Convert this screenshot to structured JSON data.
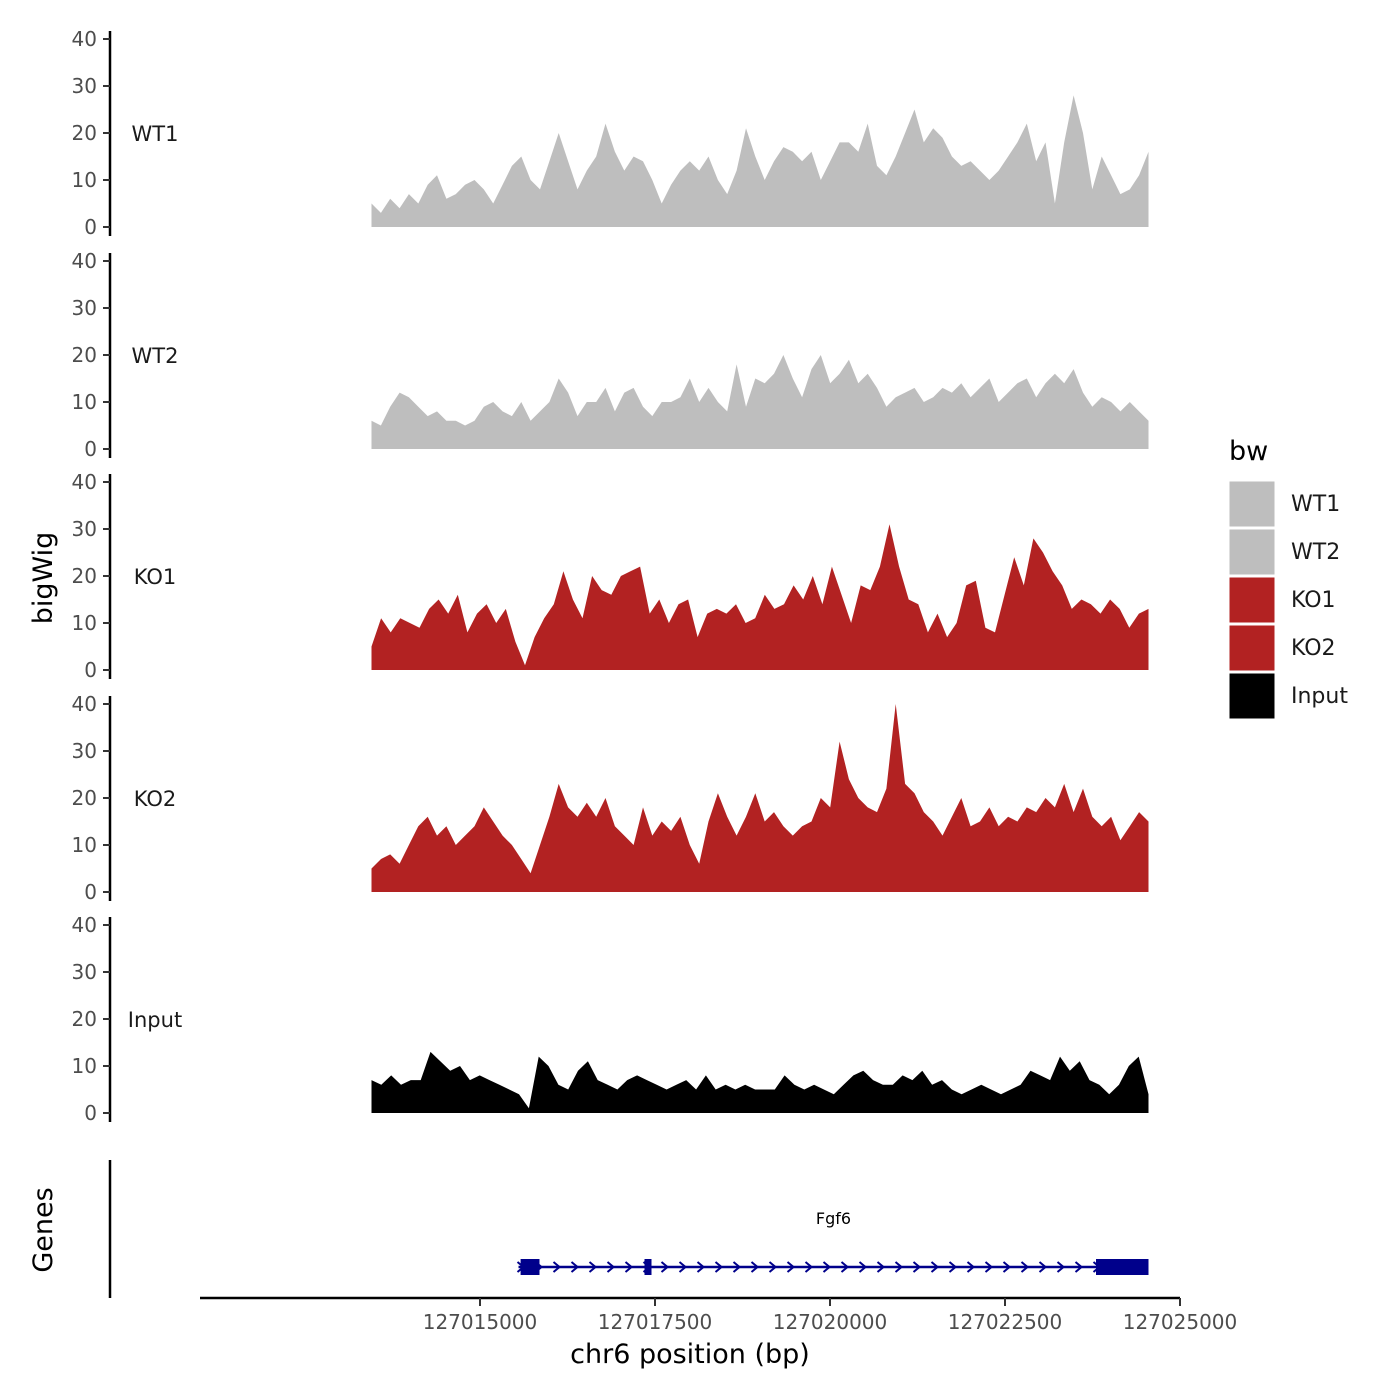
{
  "chart_data": {
    "type": "area",
    "title": "",
    "xlabel": "chr6 position (bp)",
    "ylabel": "bigWig",
    "gene_track_label": "Genes",
    "xlim": [
      127011000,
      127025000
    ],
    "x_ticks": [
      127015000,
      127017500,
      127020000,
      127022500,
      127025000
    ],
    "x_tick_labels": [
      "127015000",
      "127017500",
      "127020000",
      "127022500",
      "127025000"
    ],
    "ylim": [
      0,
      40
    ],
    "y_ticks": [
      0,
      10,
      20,
      30,
      40
    ],
    "y_tick_labels": [
      "0",
      "10",
      "20",
      "30",
      "40"
    ],
    "x_start": 127013450,
    "x_end": 127024550,
    "legend": {
      "title": "bw",
      "entries": [
        {
          "label": "WT1",
          "color": "#bebebe"
        },
        {
          "label": "WT2",
          "color": "#bebebe"
        },
        {
          "label": "KO1",
          "color": "#b22222"
        },
        {
          "label": "KO2",
          "color": "#b22222"
        },
        {
          "label": "Input",
          "color": "#000000"
        }
      ]
    },
    "series": [
      {
        "name": "WT1",
        "color": "#bebebe",
        "values": [
          5,
          3,
          6,
          4,
          7,
          5,
          9,
          11,
          6,
          7,
          9,
          10,
          8,
          5,
          9,
          13,
          15,
          10,
          8,
          14,
          20,
          14,
          8,
          12,
          15,
          22,
          16,
          12,
          15,
          14,
          10,
          5,
          9,
          12,
          14,
          12,
          15,
          10,
          7,
          12,
          21,
          15,
          10,
          14,
          17,
          16,
          14,
          16,
          10,
          14,
          18,
          18,
          16,
          22,
          13,
          11,
          15,
          20,
          25,
          18,
          21,
          19,
          15,
          13,
          14,
          12,
          10,
          12,
          15,
          18,
          22,
          14,
          18,
          5,
          18,
          28,
          20,
          8,
          15,
          11,
          7,
          8,
          11,
          16
        ]
      },
      {
        "name": "WT2",
        "color": "#bebebe",
        "values": [
          6,
          5,
          9,
          12,
          11,
          9,
          7,
          8,
          6,
          6,
          5,
          6,
          9,
          10,
          8,
          7,
          10,
          6,
          8,
          10,
          15,
          12,
          7,
          10,
          10,
          13,
          8,
          12,
          13,
          9,
          7,
          10,
          10,
          11,
          15,
          10,
          13,
          10,
          8,
          18,
          9,
          15,
          14,
          16,
          20,
          15,
          11,
          17,
          20,
          14,
          16,
          19,
          14,
          16,
          13,
          9,
          11,
          12,
          13,
          10,
          11,
          13,
          12,
          14,
          11,
          13,
          15,
          10,
          12,
          14,
          15,
          11,
          14,
          16,
          14,
          17,
          12,
          9,
          11,
          10,
          8,
          10,
          8,
          6
        ]
      },
      {
        "name": "KO1",
        "color": "#b22222",
        "values": [
          5,
          11,
          8,
          11,
          10,
          9,
          13,
          15,
          12,
          16,
          8,
          12,
          14,
          10,
          13,
          6,
          1,
          7,
          11,
          14,
          21,
          15,
          11,
          20,
          17,
          16,
          20,
          21,
          22,
          12,
          15,
          10,
          14,
          15,
          7,
          12,
          13,
          12,
          14,
          10,
          11,
          16,
          13,
          14,
          18,
          15,
          20,
          14,
          22,
          16,
          10,
          18,
          17,
          22,
          31,
          22,
          15,
          14,
          8,
          12,
          7,
          10,
          18,
          19,
          9,
          8,
          16,
          24,
          18,
          28,
          25,
          21,
          18,
          13,
          15,
          14,
          12,
          15,
          13,
          9,
          12,
          13
        ]
      },
      {
        "name": "KO2",
        "color": "#b22222",
        "values": [
          5,
          7,
          8,
          6,
          10,
          14,
          16,
          12,
          14,
          10,
          12,
          14,
          18,
          15,
          12,
          10,
          7,
          4,
          10,
          16,
          23,
          18,
          16,
          19,
          16,
          20,
          14,
          12,
          10,
          18,
          12,
          15,
          13,
          16,
          10,
          6,
          15,
          21,
          16,
          12,
          16,
          21,
          15,
          17,
          14,
          12,
          14,
          15,
          20,
          18,
          32,
          24,
          20,
          18,
          17,
          22,
          40,
          23,
          21,
          17,
          15,
          12,
          16,
          20,
          14,
          15,
          18,
          14,
          16,
          15,
          18,
          17,
          20,
          18,
          23,
          17,
          22,
          16,
          14,
          16,
          11,
          14,
          17,
          15
        ]
      },
      {
        "name": "Input",
        "color": "#000000",
        "values": [
          7,
          6,
          8,
          6,
          7,
          7,
          13,
          11,
          9,
          10,
          7,
          8,
          7,
          6,
          5,
          4,
          1,
          12,
          10,
          6,
          5,
          9,
          11,
          7,
          6,
          5,
          7,
          8,
          7,
          6,
          5,
          6,
          7,
          5,
          8,
          5,
          6,
          5,
          6,
          5,
          5,
          5,
          8,
          6,
          5,
          6,
          5,
          4,
          6,
          8,
          9,
          7,
          6,
          6,
          8,
          7,
          9,
          6,
          7,
          5,
          4,
          5,
          6,
          5,
          4,
          5,
          6,
          9,
          8,
          7,
          12,
          9,
          11,
          7,
          6,
          4,
          6,
          10,
          12,
          4
        ]
      }
    ],
    "gene": {
      "name": "Fgf6",
      "color": "#00008b",
      "start": 127015550,
      "end": 127024550,
      "exons": [
        [
          127015580,
          127015850
        ],
        [
          127017350,
          127017410
        ],
        [
          127023800,
          127024550
        ]
      ],
      "strand": "+"
    }
  }
}
